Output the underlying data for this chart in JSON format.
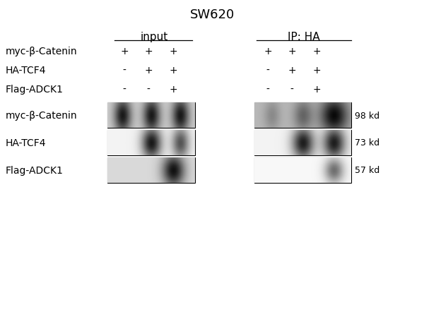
{
  "title": "SW620",
  "title_fontsize": 13,
  "background_color": "#ffffff",
  "col_header_input": "input",
  "col_header_ip": "IP: HA",
  "row_labels": [
    "myc-β-Catenin",
    "HA-TCF4",
    "Flag-ADCK1"
  ],
  "blot_labels": [
    "myc-β-Catenin",
    "HA-TCF4",
    "Flag-ADCK1"
  ],
  "kd_labels": [
    "98 kd",
    "73 kd",
    "57 kd"
  ],
  "input_signs": [
    [
      "+",
      "+",
      "+"
    ],
    [
      "-",
      "+",
      "+"
    ],
    [
      "-",
      "-",
      "+"
    ]
  ],
  "ip_signs": [
    [
      "+",
      "+",
      "+"
    ],
    [
      "-",
      "+",
      "+"
    ],
    [
      "-",
      "-",
      "+"
    ]
  ],
  "label_fontsize": 10,
  "sign_fontsize": 10,
  "header_fontsize": 11,
  "kd_fontsize": 9
}
